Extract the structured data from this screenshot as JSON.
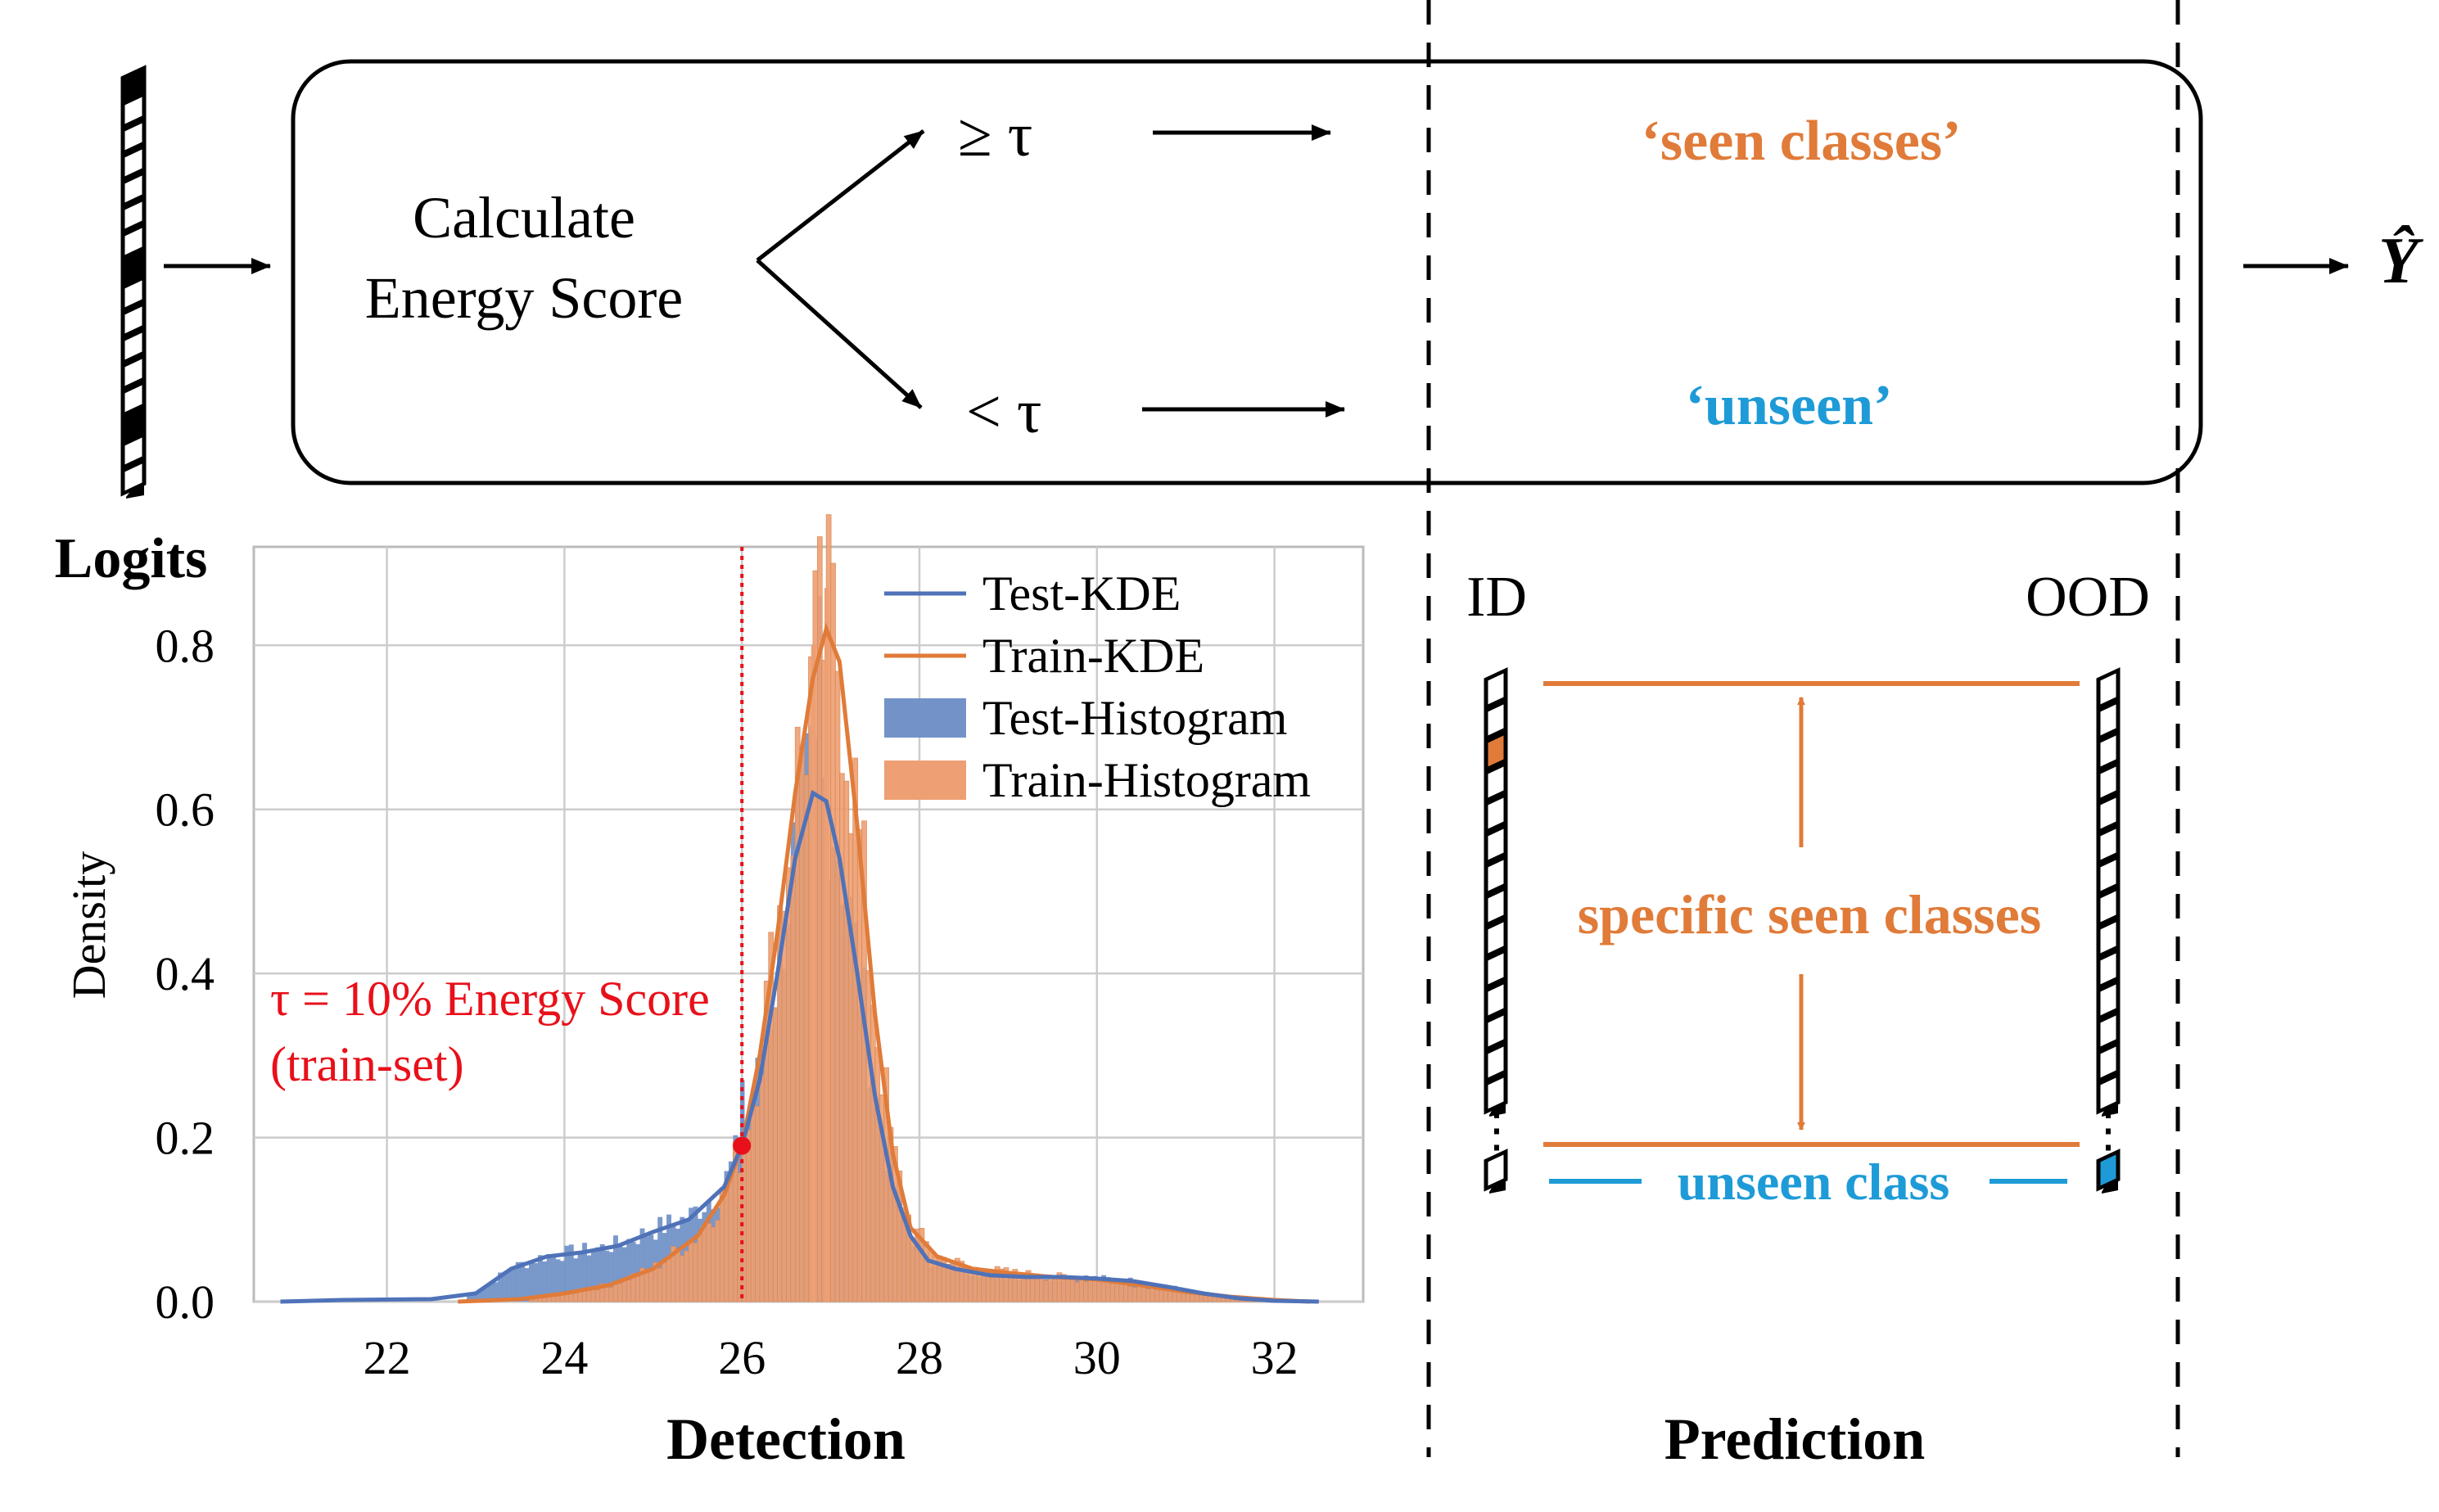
{
  "pipeline": {
    "input_label": "Logits",
    "calc_line1": "Calculate",
    "calc_line2": "Energy Score",
    "branch_high": "≥ τ",
    "branch_low": "< τ",
    "output_seen": "‘seen classes’",
    "output_unseen": "‘unseen’",
    "output_symbol": "Ŷ"
  },
  "colors": {
    "orange": "#E07B39",
    "blue": "#1E9BD7",
    "red": "#E8101A",
    "kde_blue": "#4F72B8",
    "hist_blue": "#7393C8",
    "hist_orange": "#EE9F73",
    "grid": "#CCCCCC"
  },
  "sections": {
    "detection": "Detection",
    "prediction": "Prediction"
  },
  "prediction_panel": {
    "id_label": "ID",
    "ood_label": "OOD",
    "seen_label": "specific seen classes",
    "unseen_label": "unseen class",
    "ellipsis": "⋮"
  },
  "chart_data": {
    "type": "histogram+kde",
    "xlabel": "",
    "ylabel": "Density",
    "xlim": [
      20.5,
      33.0
    ],
    "ylim": [
      0.0,
      0.92
    ],
    "xticks": [
      22,
      24,
      26,
      28,
      30,
      32
    ],
    "yticks": [
      0.0,
      0.2,
      0.4,
      0.6,
      0.8
    ],
    "grid": true,
    "legend_position": "top-right",
    "threshold": {
      "x": 26.0,
      "y": 0.19,
      "label_line1": "τ = 10% Energy Score",
      "label_line2": "(train-set)"
    },
    "series": [
      {
        "name": "Test-KDE",
        "kind": "kde",
        "points": [
          [
            20.8,
            0.0
          ],
          [
            21.5,
            0.002
          ],
          [
            22.5,
            0.003
          ],
          [
            23.0,
            0.01
          ],
          [
            23.4,
            0.04
          ],
          [
            23.8,
            0.055
          ],
          [
            24.2,
            0.06
          ],
          [
            24.6,
            0.068
          ],
          [
            25.0,
            0.085
          ],
          [
            25.4,
            0.1
          ],
          [
            25.8,
            0.14
          ],
          [
            26.0,
            0.19
          ],
          [
            26.2,
            0.27
          ],
          [
            26.4,
            0.4
          ],
          [
            26.6,
            0.54
          ],
          [
            26.8,
            0.62
          ],
          [
            26.95,
            0.61
          ],
          [
            27.1,
            0.54
          ],
          [
            27.3,
            0.4
          ],
          [
            27.5,
            0.25
          ],
          [
            27.7,
            0.14
          ],
          [
            27.9,
            0.08
          ],
          [
            28.1,
            0.05
          ],
          [
            28.4,
            0.04
          ],
          [
            28.8,
            0.032
          ],
          [
            29.2,
            0.03
          ],
          [
            29.6,
            0.03
          ],
          [
            30.0,
            0.028
          ],
          [
            30.4,
            0.025
          ],
          [
            30.8,
            0.018
          ],
          [
            31.2,
            0.01
          ],
          [
            31.6,
            0.004
          ],
          [
            32.0,
            0.001
          ],
          [
            32.5,
            0.0
          ]
        ]
      },
      {
        "name": "Train-KDE",
        "kind": "kde",
        "points": [
          [
            22.8,
            0.0
          ],
          [
            23.5,
            0.003
          ],
          [
            24.0,
            0.01
          ],
          [
            24.5,
            0.02
          ],
          [
            25.0,
            0.04
          ],
          [
            25.5,
            0.08
          ],
          [
            25.8,
            0.13
          ],
          [
            26.0,
            0.19
          ],
          [
            26.2,
            0.3
          ],
          [
            26.4,
            0.45
          ],
          [
            26.6,
            0.62
          ],
          [
            26.8,
            0.76
          ],
          [
            26.95,
            0.82
          ],
          [
            27.1,
            0.78
          ],
          [
            27.3,
            0.58
          ],
          [
            27.5,
            0.35
          ],
          [
            27.7,
            0.18
          ],
          [
            27.9,
            0.09
          ],
          [
            28.2,
            0.055
          ],
          [
            28.6,
            0.04
          ],
          [
            29.0,
            0.035
          ],
          [
            29.5,
            0.03
          ],
          [
            30.0,
            0.027
          ],
          [
            30.5,
            0.02
          ],
          [
            31.0,
            0.012
          ],
          [
            31.5,
            0.006
          ],
          [
            32.0,
            0.002
          ],
          [
            32.4,
            0.0
          ]
        ]
      },
      {
        "name": "Test-Histogram",
        "kind": "histogram",
        "outliers": [
          [
            25.98,
            0.27
          ],
          [
            26.85,
            0.86
          ]
        ]
      },
      {
        "name": "Train-Histogram",
        "kind": "histogram",
        "outliers": [
          [
            26.93,
            0.87
          ],
          [
            26.78,
            0.8
          ]
        ]
      }
    ]
  }
}
